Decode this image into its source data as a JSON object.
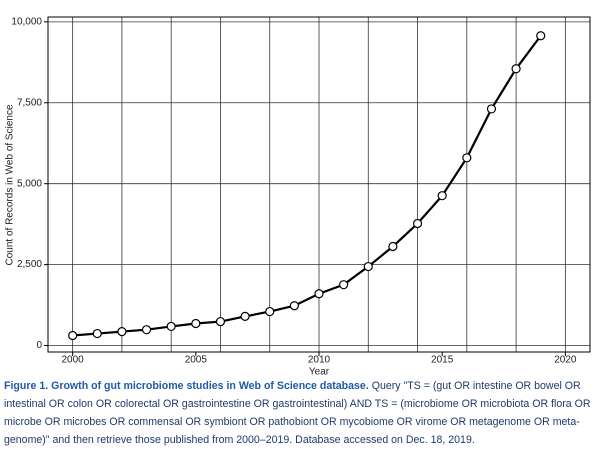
{
  "chart_data": {
    "type": "line",
    "x": [
      2000,
      2001,
      2002,
      2003,
      2004,
      2005,
      2006,
      2007,
      2008,
      2009,
      2010,
      2011,
      2012,
      2013,
      2014,
      2015,
      2016,
      2017,
      2018,
      2019
    ],
    "series": [
      {
        "name": "Count of Records",
        "color": "#000000",
        "values": [
          310,
          370,
          430,
          490,
          590,
          680,
          740,
          900,
          1050,
          1230,
          1600,
          1880,
          2440,
          3060,
          3770,
          4630,
          5800,
          7310,
          8550,
          9570
        ]
      }
    ],
    "xlabel": "Year",
    "ylabel": "Count of Records in Web of Science",
    "xlim": [
      1999,
      2021
    ],
    "xticks": [
      2000,
      2005,
      2010,
      2015,
      2020
    ],
    "x_gridlines": [
      2000,
      2002,
      2004,
      2006,
      2008,
      2010,
      2012,
      2014,
      2016,
      2018,
      2020
    ],
    "ylim": [
      -200,
      10150
    ],
    "yticks": [
      0,
      {
        "value": 2500,
        "label": "2,500"
      },
      {
        "value": 5000,
        "label": "5,000"
      },
      {
        "value": 7500,
        "label": "7,500"
      },
      {
        "value": 10000,
        "label": "10,000"
      }
    ],
    "grid": true
  },
  "caption": {
    "title": "Figure 1.  Growth of gut microbiome studies in Web of Science database.",
    "text": "Query \"TS = (gut OR intestine OR bowel OR intestinal OR colon OR colorectal OR gastrointestine OR gastrointestinal) AND TS = (microbiome OR microbiota OR flora OR microbe OR microbes OR commensal OR symbiont OR pathobiont OR mycobiome OR virome OR metagenome OR meta-genome)\" and then retrieve those published from 2000–2019. Database accessed on Dec. 18, 2019."
  }
}
